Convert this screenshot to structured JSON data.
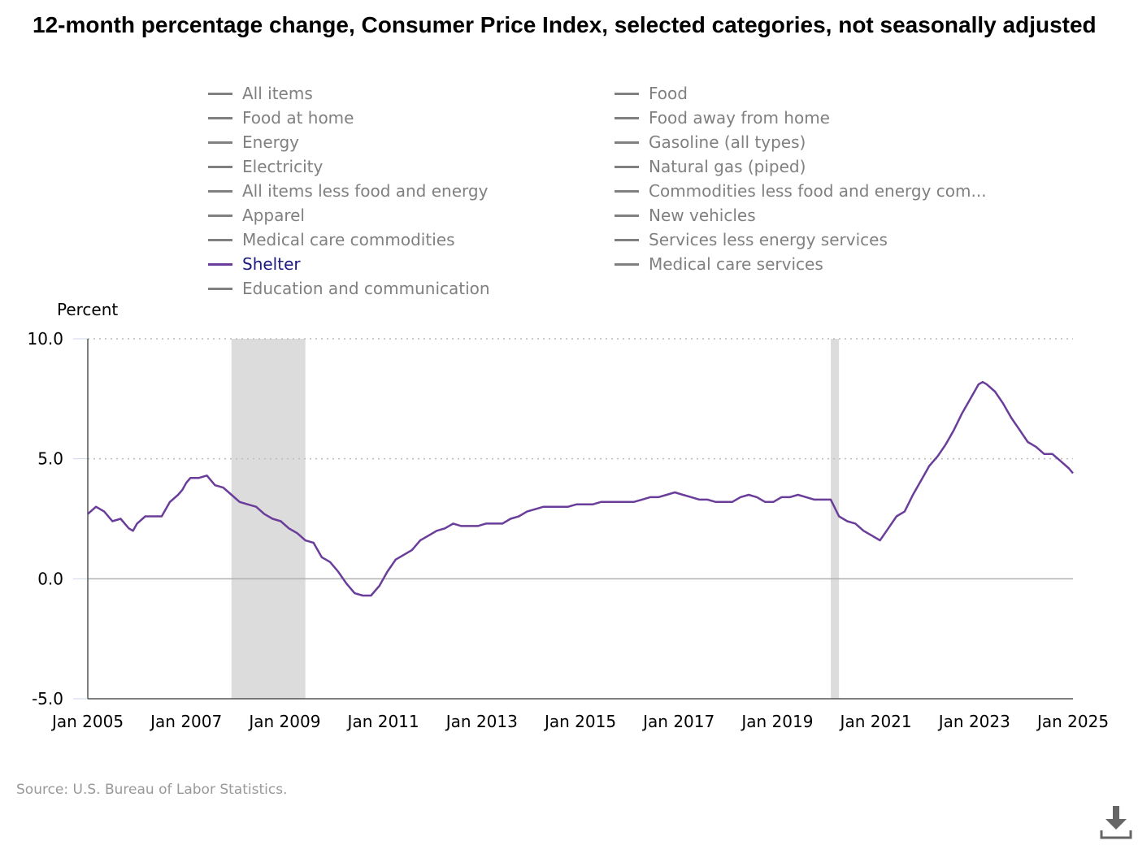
{
  "title": "12-month percentage change, Consumer Price Index, selected categories, not seasonally adjusted",
  "legend": [
    {
      "label": "All items",
      "active": false
    },
    {
      "label": "Food",
      "active": false
    },
    {
      "label": "Food at home",
      "active": false
    },
    {
      "label": "Food away from home",
      "active": false
    },
    {
      "label": "Energy",
      "active": false
    },
    {
      "label": "Gasoline (all types)",
      "active": false
    },
    {
      "label": "Electricity",
      "active": false
    },
    {
      "label": "Natural gas (piped)",
      "active": false
    },
    {
      "label": "All items less food and energy",
      "active": false
    },
    {
      "label": "Commodities less food and energy com...",
      "active": false
    },
    {
      "label": "Apparel",
      "active": false
    },
    {
      "label": "New vehicles",
      "active": false
    },
    {
      "label": "Medical care commodities",
      "active": false
    },
    {
      "label": "Services less energy services",
      "active": false
    },
    {
      "label": "Shelter",
      "active": true
    },
    {
      "label": "Medical care services",
      "active": false
    },
    {
      "label": "Education and communication",
      "active": false
    }
  ],
  "source": "Source: U.S. Bureau of Labor Statistics.",
  "icons": {
    "download": "download-icon"
  },
  "colors": {
    "shelter": "#6a3d9a",
    "inactive_legend": "#808080",
    "active_legend": "#1a1a80",
    "recession": "#dcdcdc"
  },
  "chart_data": {
    "type": "line",
    "ylabel": "Percent",
    "ylim": [
      -5.0,
      10.0
    ],
    "yticks": [
      "10.0",
      "5.0",
      "0.0",
      "-5.0"
    ],
    "xlim": [
      "2005-01",
      "2025-01"
    ],
    "xticks": [
      "Jan 2005",
      "Jan 2007",
      "Jan 2009",
      "Jan 2011",
      "Jan 2013",
      "Jan 2015",
      "Jan 2017",
      "Jan 2019",
      "Jan 2021",
      "Jan 2023",
      "Jan 2025"
    ],
    "grid": "horizontal dotted at 5.0 and 10.0, solid at 0.0",
    "recessions": [
      {
        "start": "2007-12",
        "end": "2009-06"
      },
      {
        "start": "2020-02",
        "end": "2020-04"
      }
    ],
    "series": [
      {
        "name": "Shelter",
        "color": "#6a3d9a",
        "points": [
          [
            "2005-01",
            2.7
          ],
          [
            "2005-03",
            3.0
          ],
          [
            "2005-05",
            2.8
          ],
          [
            "2005-07",
            2.4
          ],
          [
            "2005-09",
            2.5
          ],
          [
            "2005-11",
            2.1
          ],
          [
            "2005-12",
            2.0
          ],
          [
            "2006-01",
            2.3
          ],
          [
            "2006-03",
            2.6
          ],
          [
            "2006-05",
            2.6
          ],
          [
            "2006-07",
            2.6
          ],
          [
            "2006-09",
            3.2
          ],
          [
            "2006-11",
            3.5
          ],
          [
            "2006-12",
            3.7
          ],
          [
            "2007-01",
            4.0
          ],
          [
            "2007-02",
            4.2
          ],
          [
            "2007-04",
            4.2
          ],
          [
            "2007-06",
            4.3
          ],
          [
            "2007-08",
            3.9
          ],
          [
            "2007-10",
            3.8
          ],
          [
            "2007-12",
            3.5
          ],
          [
            "2008-02",
            3.2
          ],
          [
            "2008-04",
            3.1
          ],
          [
            "2008-06",
            3.0
          ],
          [
            "2008-08",
            2.7
          ],
          [
            "2008-10",
            2.5
          ],
          [
            "2008-12",
            2.4
          ],
          [
            "2009-02",
            2.1
          ],
          [
            "2009-04",
            1.9
          ],
          [
            "2009-06",
            1.6
          ],
          [
            "2009-08",
            1.5
          ],
          [
            "2009-10",
            0.9
          ],
          [
            "2009-12",
            0.7
          ],
          [
            "2010-02",
            0.3
          ],
          [
            "2010-04",
            -0.2
          ],
          [
            "2010-06",
            -0.6
          ],
          [
            "2010-08",
            -0.7
          ],
          [
            "2010-10",
            -0.7
          ],
          [
            "2010-12",
            -0.3
          ],
          [
            "2011-02",
            0.3
          ],
          [
            "2011-04",
            0.8
          ],
          [
            "2011-06",
            1.0
          ],
          [
            "2011-08",
            1.2
          ],
          [
            "2011-10",
            1.6
          ],
          [
            "2011-12",
            1.8
          ],
          [
            "2012-02",
            2.0
          ],
          [
            "2012-04",
            2.1
          ],
          [
            "2012-06",
            2.3
          ],
          [
            "2012-08",
            2.2
          ],
          [
            "2012-10",
            2.2
          ],
          [
            "2012-12",
            2.2
          ],
          [
            "2013-02",
            2.3
          ],
          [
            "2013-04",
            2.3
          ],
          [
            "2013-06",
            2.3
          ],
          [
            "2013-08",
            2.5
          ],
          [
            "2013-10",
            2.6
          ],
          [
            "2013-12",
            2.8
          ],
          [
            "2014-02",
            2.9
          ],
          [
            "2014-04",
            3.0
          ],
          [
            "2014-06",
            3.0
          ],
          [
            "2014-08",
            3.0
          ],
          [
            "2014-10",
            3.0
          ],
          [
            "2014-12",
            3.1
          ],
          [
            "2015-02",
            3.1
          ],
          [
            "2015-04",
            3.1
          ],
          [
            "2015-06",
            3.2
          ],
          [
            "2015-08",
            3.2
          ],
          [
            "2015-10",
            3.2
          ],
          [
            "2015-12",
            3.2
          ],
          [
            "2016-02",
            3.2
          ],
          [
            "2016-04",
            3.3
          ],
          [
            "2016-06",
            3.4
          ],
          [
            "2016-08",
            3.4
          ],
          [
            "2016-10",
            3.5
          ],
          [
            "2016-12",
            3.6
          ],
          [
            "2017-02",
            3.5
          ],
          [
            "2017-04",
            3.4
          ],
          [
            "2017-06",
            3.3
          ],
          [
            "2017-08",
            3.3
          ],
          [
            "2017-10",
            3.2
          ],
          [
            "2017-12",
            3.2
          ],
          [
            "2018-02",
            3.2
          ],
          [
            "2018-04",
            3.4
          ],
          [
            "2018-06",
            3.5
          ],
          [
            "2018-08",
            3.4
          ],
          [
            "2018-10",
            3.2
          ],
          [
            "2018-12",
            3.2
          ],
          [
            "2019-02",
            3.4
          ],
          [
            "2019-04",
            3.4
          ],
          [
            "2019-06",
            3.5
          ],
          [
            "2019-08",
            3.4
          ],
          [
            "2019-10",
            3.3
          ],
          [
            "2019-12",
            3.3
          ],
          [
            "2020-02",
            3.3
          ],
          [
            "2020-04",
            2.6
          ],
          [
            "2020-06",
            2.4
          ],
          [
            "2020-08",
            2.3
          ],
          [
            "2020-10",
            2.0
          ],
          [
            "2020-12",
            1.8
          ],
          [
            "2021-02",
            1.6
          ],
          [
            "2021-04",
            2.1
          ],
          [
            "2021-06",
            2.6
          ],
          [
            "2021-08",
            2.8
          ],
          [
            "2021-10",
            3.5
          ],
          [
            "2021-12",
            4.1
          ],
          [
            "2022-02",
            4.7
          ],
          [
            "2022-04",
            5.1
          ],
          [
            "2022-06",
            5.6
          ],
          [
            "2022-08",
            6.2
          ],
          [
            "2022-10",
            6.9
          ],
          [
            "2022-12",
            7.5
          ],
          [
            "2023-02",
            8.1
          ],
          [
            "2023-03",
            8.2
          ],
          [
            "2023-04",
            8.1
          ],
          [
            "2023-06",
            7.8
          ],
          [
            "2023-08",
            7.3
          ],
          [
            "2023-10",
            6.7
          ],
          [
            "2023-12",
            6.2
          ],
          [
            "2024-02",
            5.7
          ],
          [
            "2024-04",
            5.5
          ],
          [
            "2024-06",
            5.2
          ],
          [
            "2024-08",
            5.2
          ],
          [
            "2024-10",
            4.9
          ],
          [
            "2024-12",
            4.6
          ],
          [
            "2025-01",
            4.4
          ]
        ]
      }
    ]
  }
}
